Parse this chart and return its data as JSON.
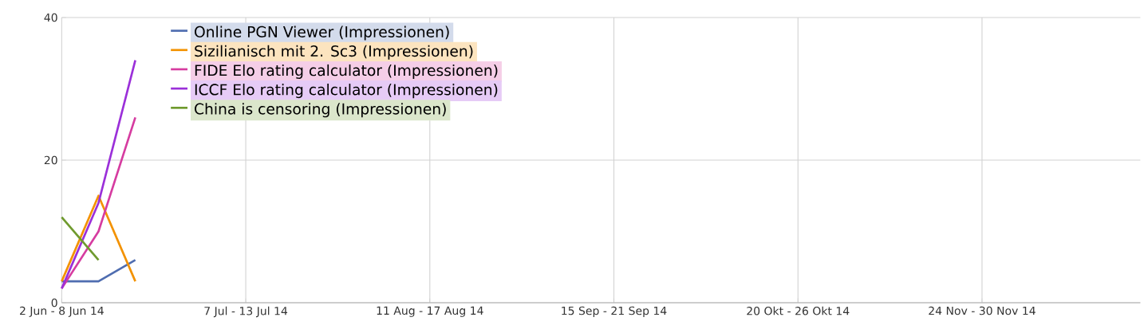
{
  "chart_data": {
    "type": "line",
    "categories": [
      "2 Jun - 8 Jun 14",
      null,
      null,
      null,
      null,
      "7 Jul - 13 Jul 14",
      null,
      null,
      null,
      null,
      "11 Aug - 17 Aug 14",
      null,
      null,
      null,
      null,
      "15 Sep - 21 Sep 14",
      null,
      null,
      null,
      null,
      "20 Okt - 26 Okt 14",
      null,
      null,
      null,
      null,
      "24 Nov - 30 Nov 14",
      null,
      null,
      null,
      null
    ],
    "series": [
      {
        "name": "Online PGN Viewer (Impressionen)",
        "color": "#4f6db0",
        "values": [
          3,
          3,
          6,
          null,
          null,
          null,
          null,
          null,
          null,
          null,
          null,
          null,
          null,
          null,
          null,
          null,
          null,
          null,
          null,
          null,
          null,
          null,
          null,
          null,
          null,
          null,
          null,
          null,
          null,
          null
        ]
      },
      {
        "name": "Sizilianisch mit 2. Sc3 (Impressionen)",
        "color": "#f39200",
        "values": [
          3,
          15,
          3,
          null,
          null,
          null,
          null,
          null,
          null,
          null,
          null,
          null,
          null,
          null,
          null,
          null,
          null,
          null,
          null,
          null,
          null,
          null,
          null,
          null,
          null,
          null,
          null,
          null,
          null,
          null
        ]
      },
      {
        "name": "FIDE Elo rating calculator (Impressionen)",
        "color": "#d63ca0",
        "values": [
          2,
          10,
          26,
          null,
          null,
          null,
          null,
          null,
          null,
          null,
          null,
          null,
          null,
          null,
          null,
          null,
          null,
          null,
          null,
          null,
          null,
          null,
          null,
          null,
          null,
          null,
          null,
          null,
          null,
          null
        ]
      },
      {
        "name": "ICCF Elo rating calculator (Impressionen)",
        "color": "#9b30d9",
        "values": [
          2,
          14,
          34,
          null,
          null,
          null,
          null,
          null,
          null,
          null,
          null,
          null,
          null,
          null,
          null,
          null,
          null,
          null,
          null,
          null,
          null,
          null,
          null,
          null,
          null,
          null,
          null,
          null,
          null,
          null
        ]
      },
      {
        "name": "China is censoring (Impressionen)",
        "color": "#6f9a2e",
        "values": [
          12,
          6,
          null,
          null,
          null,
          null,
          null,
          null,
          null,
          null,
          null,
          null,
          null,
          null,
          null,
          null,
          null,
          null,
          null,
          null,
          null,
          null,
          null,
          null,
          null,
          null,
          null,
          null,
          null,
          null
        ]
      }
    ],
    "ylim": [
      0,
      40
    ],
    "yticks": [
      0,
      20,
      40
    ],
    "grid": true,
    "legend": "top left"
  }
}
